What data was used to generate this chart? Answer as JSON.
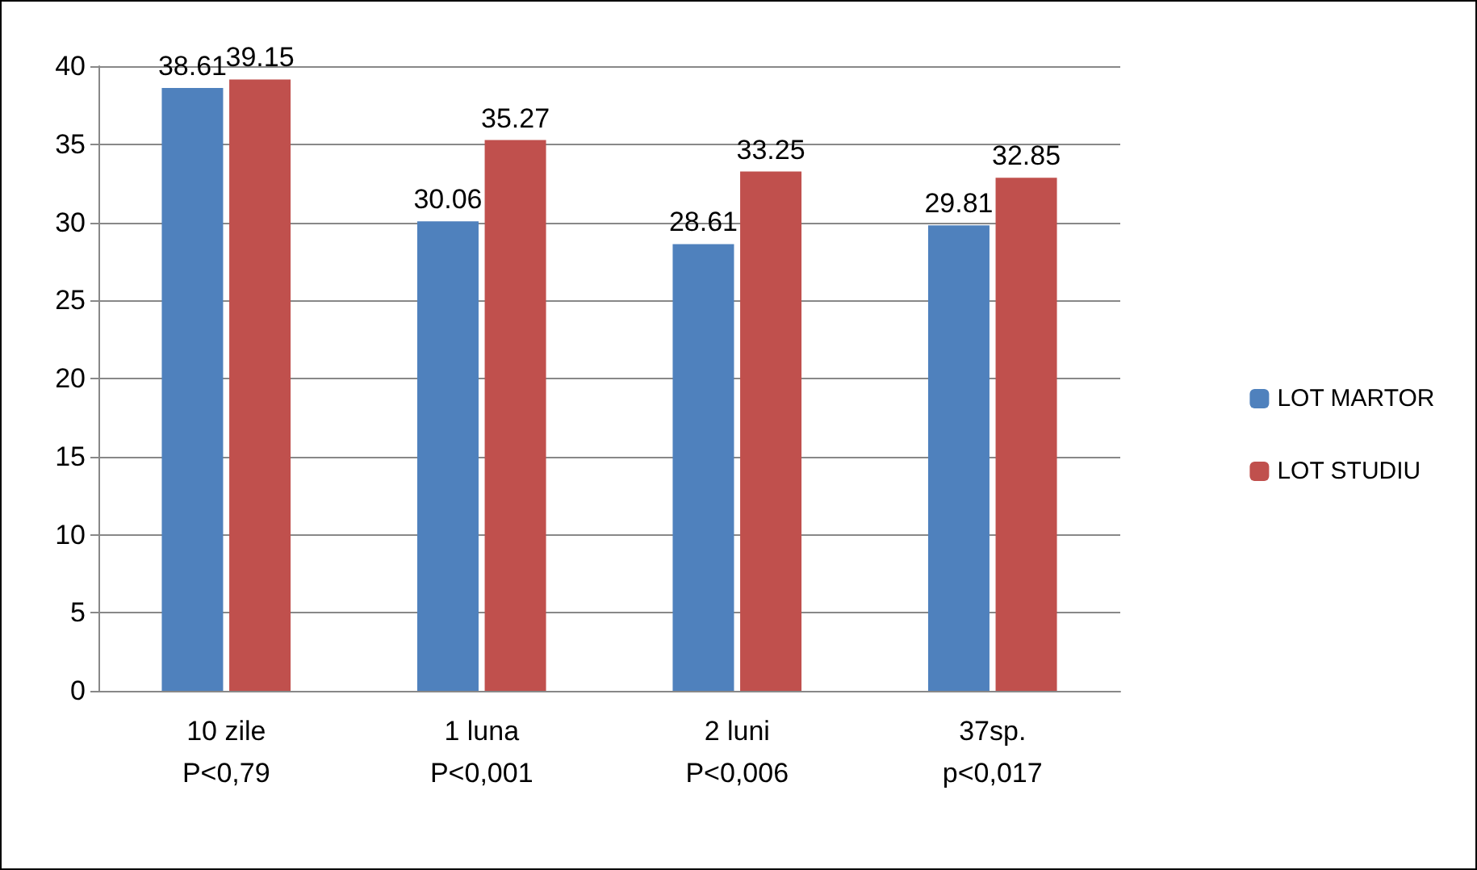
{
  "chart_data": {
    "type": "bar",
    "categories": [
      "10 zile\nP<0,79",
      "1 luna\nP<0,001",
      "2 luni\nP<0,006",
      "37sp.\np<0,017"
    ],
    "series": [
      {
        "name": "LOT MARTOR",
        "color": "#4f81bd",
        "values": [
          38.61,
          30.06,
          28.61,
          29.81
        ]
      },
      {
        "name": "LOT STUDIU",
        "color": "#c0504d",
        "values": [
          39.15,
          35.27,
          33.25,
          32.85
        ]
      }
    ],
    "ylim": [
      0,
      40
    ],
    "yticks": [
      0,
      5,
      10,
      15,
      20,
      25,
      30,
      35,
      40
    ],
    "grid": "y",
    "legend": "right",
    "data_labels": true
  }
}
